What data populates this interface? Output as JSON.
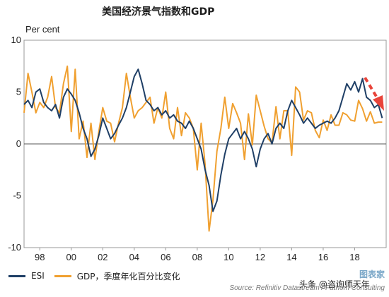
{
  "header": {
    "title": "美国经济景气指数和GDP",
    "unit": "Per cent"
  },
  "footer": {
    "source": "Source: Refinitiv Datastream / Fathom Consulting",
    "watermark_top": "图表家",
    "watermark_bottom": "头条 @咨询师天年"
  },
  "colors": {
    "esi": "#1f3f66",
    "gdp": "#f0a030",
    "arrow": "#e8443a",
    "zero": "#555555"
  },
  "chart_data": {
    "type": "line",
    "ylabel": "Per cent",
    "ylim": [
      -10,
      10
    ],
    "xlim": [
      1997.0,
      2020.0
    ],
    "y_ticks": [
      10,
      5,
      0,
      -5,
      -10
    ],
    "x_ticks": [
      {
        "v": 1998,
        "label": "98"
      },
      {
        "v": 2000,
        "label": "00"
      },
      {
        "v": 2002,
        "label": "02"
      },
      {
        "v": 2004,
        "label": "04"
      },
      {
        "v": 2006,
        "label": "06"
      },
      {
        "v": 2008,
        "label": "08"
      },
      {
        "v": 2010,
        "label": "10"
      },
      {
        "v": 2012,
        "label": "12"
      },
      {
        "v": 2014,
        "label": "14"
      },
      {
        "v": 2016,
        "label": "16"
      },
      {
        "v": 2018,
        "label": "18"
      }
    ],
    "legend": "bottom",
    "series": [
      {
        "name": "ESI",
        "x": [
          1997.0,
          1997.25,
          1997.5,
          1997.75,
          1998.0,
          1998.25,
          1998.5,
          1998.75,
          1999.0,
          1999.25,
          1999.5,
          1999.75,
          2000.0,
          2000.25,
          2000.5,
          2000.75,
          2001.0,
          2001.25,
          2001.5,
          2001.75,
          2002.0,
          2002.25,
          2002.5,
          2002.75,
          2003.0,
          2003.25,
          2003.5,
          2003.75,
          2004.0,
          2004.25,
          2004.5,
          2004.75,
          2005.0,
          2005.25,
          2005.5,
          2005.75,
          2006.0,
          2006.25,
          2006.5,
          2006.75,
          2007.0,
          2007.25,
          2007.5,
          2007.75,
          2008.0,
          2008.25,
          2008.5,
          2008.75,
          2009.0,
          2009.25,
          2009.5,
          2009.75,
          2010.0,
          2010.25,
          2010.5,
          2010.75,
          2011.0,
          2011.25,
          2011.5,
          2011.75,
          2012.0,
          2012.25,
          2012.5,
          2012.75,
          2013.0,
          2013.25,
          2013.5,
          2013.75,
          2014.0,
          2014.25,
          2014.5,
          2014.75,
          2015.0,
          2015.25,
          2015.5,
          2015.75,
          2016.0,
          2016.25,
          2016.5,
          2016.75,
          2017.0,
          2017.25,
          2017.5,
          2017.75,
          2018.0,
          2018.25,
          2018.5,
          2018.75,
          2019.0,
          2019.25,
          2019.5,
          2019.75
        ],
        "values": [
          3.8,
          4.2,
          3.5,
          5.0,
          5.3,
          4.0,
          3.5,
          3.2,
          3.8,
          2.5,
          4.5,
          5.3,
          4.8,
          4.2,
          3.0,
          1.5,
          0.5,
          -1.2,
          -0.5,
          0.8,
          2.5,
          1.5,
          0.5,
          1.0,
          1.8,
          2.5,
          3.5,
          5.0,
          6.5,
          7.2,
          5.8,
          4.2,
          3.8,
          3.2,
          3.5,
          2.8,
          3.2,
          2.5,
          2.8,
          2.2,
          2.0,
          1.5,
          2.2,
          1.5,
          0.5,
          -0.5,
          -2.5,
          -4.0,
          -6.5,
          -5.5,
          -3.0,
          -1.0,
          0.5,
          1.0,
          1.5,
          0.5,
          1.2,
          0.5,
          -0.5,
          -2.2,
          -0.5,
          0.5,
          1.0,
          0.0,
          1.5,
          2.0,
          1.5,
          3.2,
          4.2,
          3.5,
          2.8,
          2.0,
          2.5,
          2.0,
          1.5,
          1.8,
          2.0,
          2.2,
          2.0,
          2.5,
          3.2,
          4.5,
          5.8,
          5.2,
          6.0,
          5.0,
          6.3,
          4.5,
          4.2,
          3.5,
          3.8,
          2.5
        ]
      },
      {
        "name": "GDP，季度年化百分比变化",
        "x": [
          1997.0,
          1997.25,
          1997.5,
          1997.75,
          1998.0,
          1998.25,
          1998.5,
          1998.75,
          1999.0,
          1999.25,
          1999.5,
          1999.75,
          2000.0,
          2000.25,
          2000.5,
          2000.75,
          2001.0,
          2001.25,
          2001.5,
          2001.75,
          2002.0,
          2002.25,
          2002.5,
          2002.75,
          2003.0,
          2003.25,
          2003.5,
          2003.75,
          2004.0,
          2004.25,
          2004.5,
          2004.75,
          2005.0,
          2005.25,
          2005.5,
          2005.75,
          2006.0,
          2006.25,
          2006.5,
          2006.75,
          2007.0,
          2007.25,
          2007.5,
          2007.75,
          2008.0,
          2008.25,
          2008.5,
          2008.75,
          2009.0,
          2009.25,
          2009.5,
          2009.75,
          2010.0,
          2010.25,
          2010.5,
          2010.75,
          2011.0,
          2011.25,
          2011.5,
          2011.75,
          2012.0,
          2012.25,
          2012.5,
          2012.75,
          2013.0,
          2013.25,
          2013.5,
          2013.75,
          2014.0,
          2014.25,
          2014.5,
          2014.75,
          2015.0,
          2015.25,
          2015.5,
          2015.75,
          2016.0,
          2016.25,
          2016.5,
          2016.75,
          2017.0,
          2017.25,
          2017.5,
          2017.75,
          2018.0,
          2018.25,
          2018.5,
          2018.75,
          2019.0,
          2019.25,
          2019.5,
          2019.75
        ],
        "values": [
          3.0,
          6.8,
          5.0,
          3.0,
          4.0,
          3.5,
          4.5,
          6.5,
          3.5,
          3.0,
          5.8,
          7.5,
          1.2,
          7.2,
          0.5,
          2.2,
          -1.3,
          2.0,
          -1.5,
          1.2,
          3.5,
          2.2,
          2.0,
          0.2,
          2.0,
          3.5,
          6.8,
          4.5,
          2.5,
          3.2,
          3.5,
          4.0,
          4.5,
          2.0,
          3.5,
          2.5,
          5.0,
          1.5,
          0.5,
          3.5,
          0.8,
          3.0,
          2.5,
          1.5,
          -2.5,
          2.0,
          -2.0,
          -8.4,
          -5.4,
          -0.7,
          1.5,
          4.5,
          1.5,
          3.9,
          3.0,
          2.0,
          -1.5,
          2.9,
          -0.1,
          4.7,
          3.2,
          1.7,
          0.5,
          0.1,
          3.6,
          0.5,
          3.2,
          3.2,
          -1.1,
          5.5,
          5.0,
          2.3,
          3.2,
          3.0,
          1.3,
          0.6,
          2.3,
          1.3,
          2.8,
          1.8,
          1.8,
          3.0,
          2.8,
          2.3,
          2.2,
          4.2,
          3.4,
          2.2,
          3.1,
          2.0,
          2.1,
          2.1
        ]
      }
    ]
  }
}
